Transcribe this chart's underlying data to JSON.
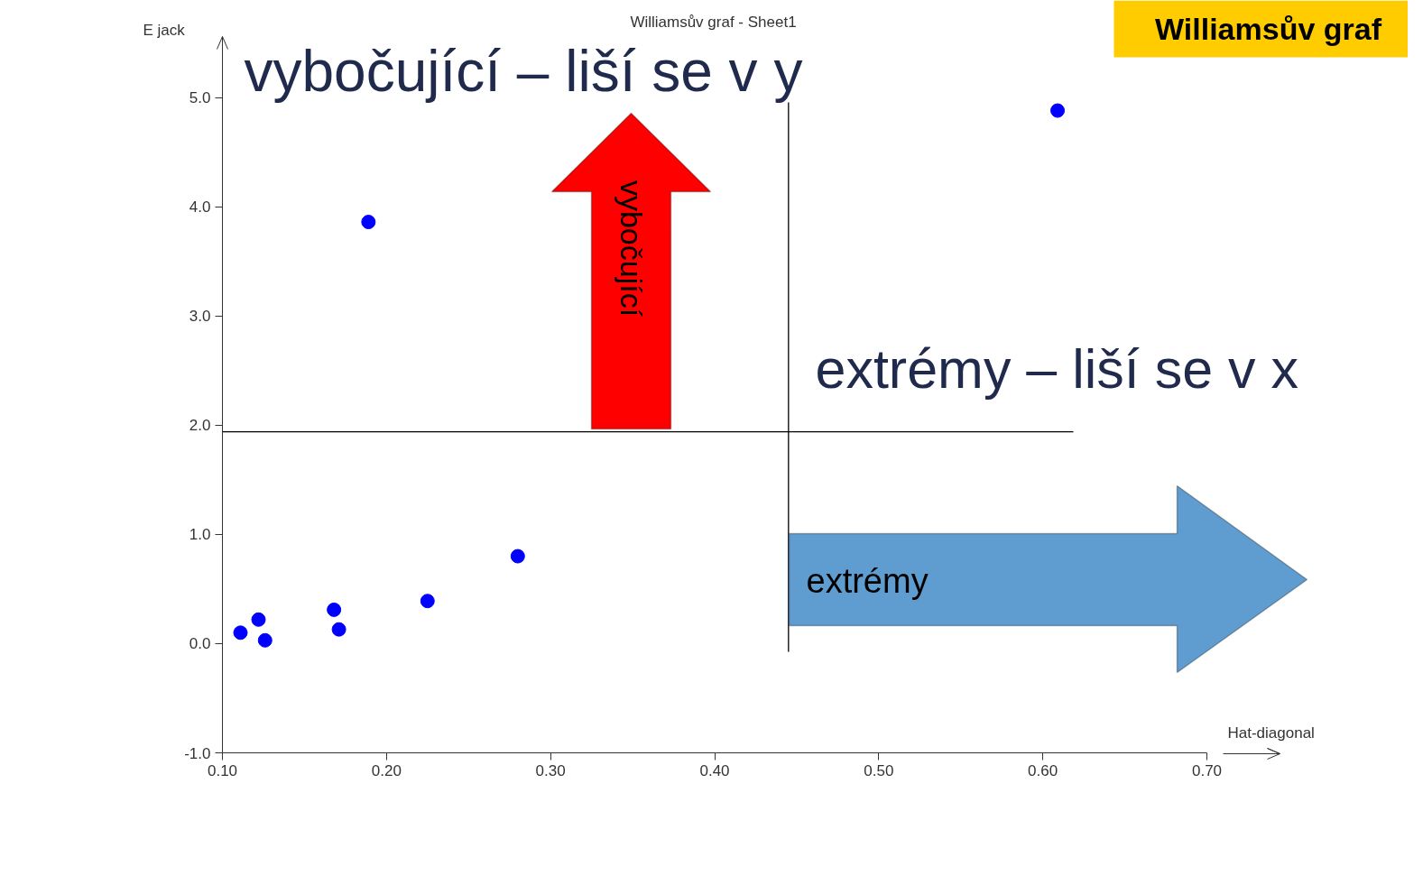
{
  "chart_data": {
    "type": "scatter",
    "title": "Williamsův graf - Sheet1",
    "xlabel": "Hat-diagonal",
    "ylabel": "E jack",
    "x": [
      0.111,
      0.122,
      0.126,
      0.168,
      0.171,
      0.225,
      0.28,
      0.189,
      0.609
    ],
    "series": [
      {
        "color": "#0000ff",
        "values": [
          0.1,
          0.22,
          0.03,
          0.31,
          0.13,
          0.39,
          0.8,
          3.86,
          4.88
        ]
      }
    ],
    "xlim": [
      0.1,
      0.7
    ],
    "ylim": [
      -1.0,
      5.5
    ],
    "xticks": [
      {
        "value": 0.1,
        "label": "0.10"
      },
      {
        "value": 0.2,
        "label": "0.20"
      },
      {
        "value": 0.3,
        "label": "0.30"
      },
      {
        "value": 0.4,
        "label": "0.40"
      },
      {
        "value": 0.5,
        "label": "0.50"
      },
      {
        "value": 0.6,
        "label": "0.60"
      },
      {
        "value": 0.7,
        "label": "0.70"
      }
    ],
    "yticks": [
      {
        "value": -1,
        "label": "-1.0"
      },
      {
        "value": 0,
        "label": "0.0"
      },
      {
        "value": 1,
        "label": "1.0"
      },
      {
        "value": 2,
        "label": "2.0"
      },
      {
        "value": 3,
        "label": "3.0"
      },
      {
        "value": 4,
        "label": "4.0"
      },
      {
        "value": 5,
        "label": "5.0"
      }
    ],
    "ref_lines": [
      {
        "axis": "y",
        "value": 1.94,
        "color": "#000000"
      },
      {
        "axis": "x",
        "value": 0.445,
        "color": "#000000"
      }
    ],
    "annotations": [
      "vybočující – liší se v y",
      "extrémy – liší se v x",
      "vybočující",
      "extrémy",
      "Williamsův graf"
    ],
    "marker": "circle",
    "grid": false
  }
}
